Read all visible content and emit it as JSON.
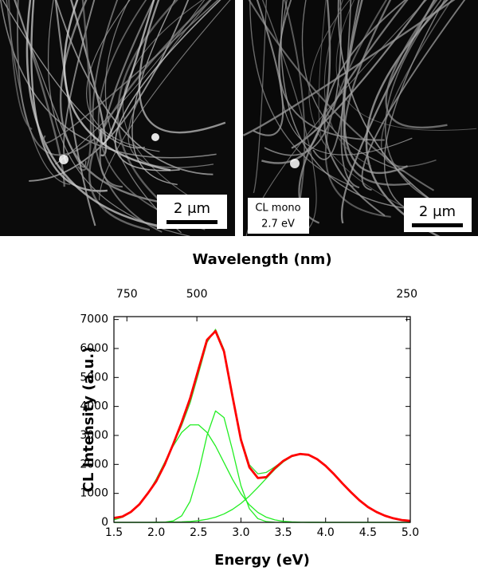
{
  "images": [
    {
      "scale_bar": "2 μm"
    },
    {
      "label": [
        "CL mono",
        "2.7 eV"
      ],
      "scale_bar": "2 μm"
    }
  ],
  "chart_data": {
    "type": "line",
    "xlabel": "Energy (eV)",
    "ylabel": "CL Intensity (a.u.)",
    "x2label": "Wavelength (nm)",
    "x": [
      1.5,
      1.6,
      1.7,
      1.8,
      1.9,
      2.0,
      2.1,
      2.2,
      2.3,
      2.4,
      2.5,
      2.6,
      2.7,
      2.8,
      2.9,
      3.0,
      3.1,
      3.2,
      3.3,
      3.4,
      3.5,
      3.6,
      3.7,
      3.8,
      3.9,
      4.0,
      4.1,
      4.2,
      4.3,
      4.4,
      4.5,
      4.6,
      4.7,
      4.8,
      4.9,
      5.0
    ],
    "series": [
      {
        "color": "#ff0000",
        "values": [
          150,
          200,
          360,
          620,
          1000,
          1420,
          2000,
          2700,
          3450,
          4280,
          5300,
          6300,
          6600,
          5900,
          4350,
          2850,
          1900,
          1530,
          1560,
          1870,
          2120,
          2290,
          2360,
          2330,
          2180,
          1950,
          1660,
          1340,
          1040,
          760,
          530,
          360,
          230,
          140,
          80,
          50
        ]
      },
      {
        "color": "#33dd33",
        "values": [
          85,
          178,
          342,
          606,
          989,
          1490,
          2074,
          2694,
          3343,
          4123,
          5149,
          6212,
          6661,
          5969,
          4431,
          2909,
          1986,
          1676,
          1724,
          1914,
          2122,
          2283,
          2353,
          2315,
          2170,
          1936,
          1646,
          1330,
          1024,
          750,
          523,
          347,
          219,
          132,
          75,
          41
        ]
      },
      {
        "color": "#22ee22",
        "values": [
          85,
          178,
          342,
          606,
          989,
          1487,
          2062,
          2635,
          3102,
          3365,
          3365,
          3102,
          2635,
          2062,
          1487,
          989,
          606,
          342,
          178,
          85,
          37,
          15,
          5,
          2,
          1,
          0,
          0,
          0,
          0,
          0,
          0,
          0,
          0,
          0,
          0,
          0
        ]
      },
      {
        "color": "#22ee22",
        "values": [
          0,
          0,
          0,
          0,
          0,
          1,
          8,
          51,
          225,
          726,
          1724,
          3004,
          3846,
          3616,
          2497,
          1266,
          471,
          129,
          26,
          4,
          0,
          0,
          0,
          0,
          0,
          0,
          0,
          0,
          0,
          0,
          0,
          0,
          0,
          0,
          0,
          0
        ]
      },
      {
        "color": "#22ee22",
        "values": [
          0,
          0,
          0,
          0,
          0,
          2,
          4,
          8,
          16,
          32,
          60,
          106,
          180,
          291,
          447,
          654,
          909,
          1205,
          1520,
          1825,
          2085,
          2268,
          2348,
          2313,
          2169,
          1936,
          1646,
          1330,
          1024,
          750,
          523,
          347,
          219,
          132,
          75,
          41
        ]
      }
    ],
    "xlim": [
      1.5,
      5.0
    ],
    "xticks": [
      1.5,
      {
        "value": 2,
        "label": "2.0"
      },
      2.5,
      {
        "value": 3,
        "label": "3.0"
      },
      3.5,
      {
        "value": 4,
        "label": "4.0"
      },
      4.5,
      {
        "value": 5,
        "label": "5.0"
      }
    ],
    "x2ticks": [
      750,
      500,
      250
    ],
    "ylim": [
      0,
      7100
    ],
    "yticks": [
      0,
      1000,
      2000,
      3000,
      4000,
      5000,
      6000,
      7000
    ]
  }
}
